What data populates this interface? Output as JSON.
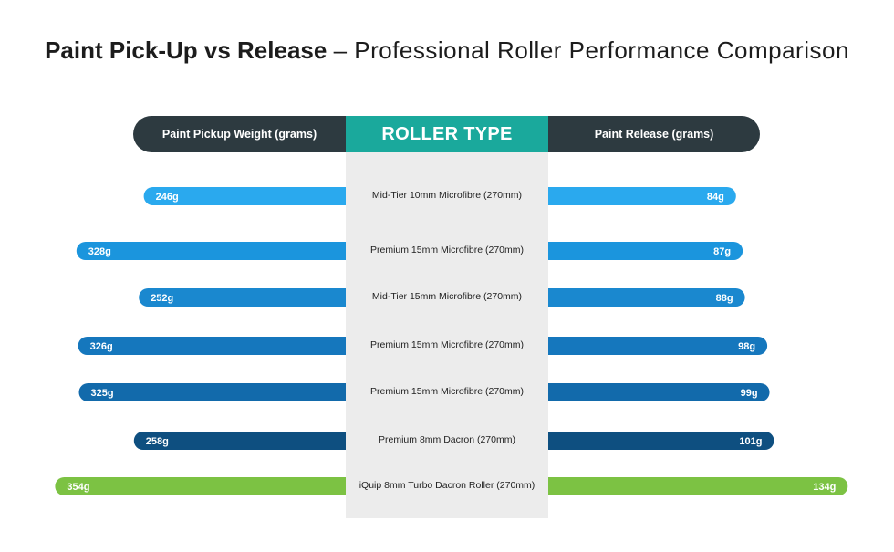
{
  "title_bold": "Paint Pick-Up vs Release",
  "title_rest": "– Professional Roller Performance Comparison",
  "headers": {
    "left": "Paint Pickup Weight (grams)",
    "center": "ROLLER TYPE",
    "right": "Paint Release (grams)"
  },
  "chart_data": {
    "type": "bar",
    "categories": [
      "Mid-Tier 10mm Microfibre (270mm)",
      "Premium 15mm Microfibre (270mm)",
      "Mid-Tier 15mm Microfibre (270mm)",
      "Premium 15mm  Microfibre (270mm)",
      "Premium 15mm  Microfibre (270mm)",
      "Premium 8mm Dacron (270mm)",
      "iQuip 8mm Turbo Dacron Roller (270mm)"
    ],
    "series": [
      {
        "name": "Paint Pickup Weight (grams)",
        "values": [
          246,
          328,
          252,
          326,
          325,
          258,
          354
        ],
        "labels": [
          "246g",
          "328g",
          "252g",
          "326g",
          "325g",
          "258g",
          "354g"
        ]
      },
      {
        "name": "Paint Release (grams)",
        "values": [
          84,
          87,
          88,
          98,
          99,
          101,
          134
        ],
        "labels": [
          "84g",
          "87g",
          "88g",
          "98g",
          "99g",
          "101g",
          "134g"
        ]
      }
    ],
    "colors": [
      "#2aa9ee",
      "#1b95dd",
      "#1a88cf",
      "#1577bd",
      "#126aab",
      "#0e4f80",
      "#7cc243"
    ],
    "layout": "diverging"
  }
}
